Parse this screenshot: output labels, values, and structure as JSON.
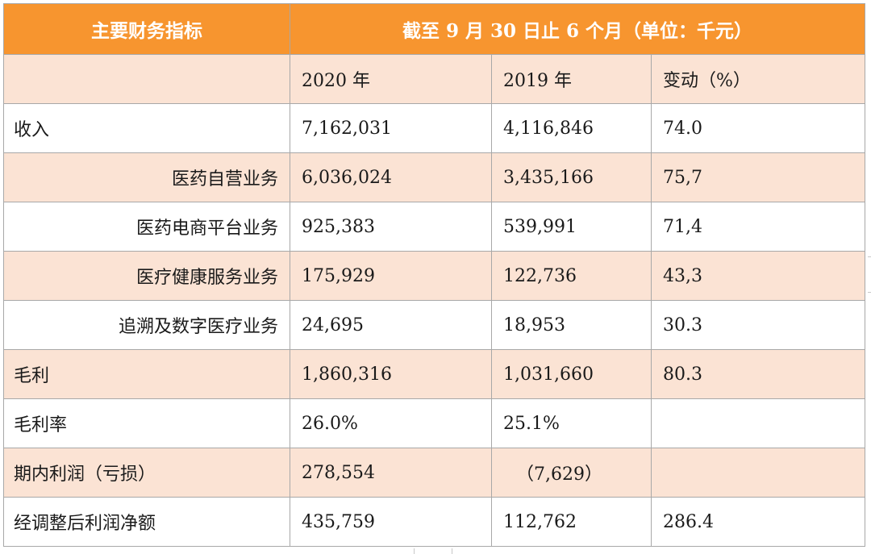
{
  "table": {
    "header": {
      "left": "主要财务指标",
      "right": "截至 9 月 30 日止 6 个月（单位：千元）"
    },
    "subheader": {
      "label": "",
      "col_2020": "2020 年",
      "col_2019": "2019 年",
      "col_change": "变动（%）"
    },
    "rows": [
      {
        "label": "收入",
        "v2020": "7,162,031",
        "v2019": "4,116,846",
        "change": "74.0",
        "indent": false,
        "shade": false
      },
      {
        "label": "医药自营业务",
        "v2020": "6,036,024",
        "v2019": "3,435,166",
        "change": "75,7",
        "indent": true,
        "shade": true
      },
      {
        "label": "医药电商平台业务",
        "v2020": "925,383",
        "v2019": "539,991",
        "change": "71,4",
        "indent": true,
        "shade": false
      },
      {
        "label": "医疗健康服务业务",
        "v2020": "175,929",
        "v2019": "122,736",
        "change": "43,3",
        "indent": true,
        "shade": true
      },
      {
        "label": "追溯及数字医疗业务",
        "v2020": "24,695",
        "v2019": "18,953",
        "change": "30.3",
        "indent": true,
        "shade": false
      },
      {
        "label": "毛利",
        "v2020": "1,860,316",
        "v2019": "1,031,660",
        "change": "80.3",
        "indent": false,
        "shade": true
      },
      {
        "label": "毛利率",
        "v2020": "26.0%",
        "v2019": "25.1%",
        "change": "",
        "indent": false,
        "shade": false
      },
      {
        "label": "期内利润（亏损）",
        "v2020": "278,554",
        "v2019": "（7,629）",
        "change": "",
        "indent": false,
        "shade": true
      },
      {
        "label": "经调整后利润净额",
        "v2020": "435,759",
        "v2019": "112,762",
        "change": "286.4",
        "indent": false,
        "shade": false
      }
    ]
  },
  "colors": {
    "header_bg": "#f7952f",
    "header_text": "#ffffff",
    "shade_bg": "#fbe3d4",
    "border": "#a8a8a8"
  }
}
